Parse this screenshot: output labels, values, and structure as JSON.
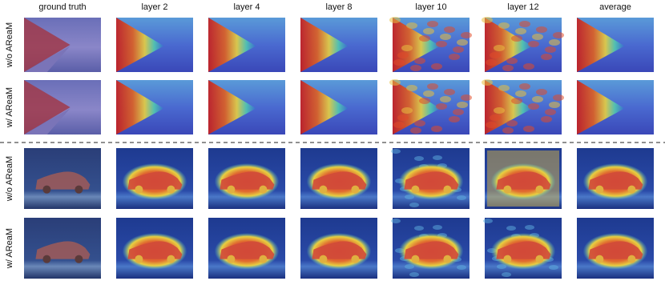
{
  "columns": [
    "ground truth",
    "layer 2",
    "layer 4",
    "layer 8",
    "layer 10",
    "layer 12",
    "average"
  ],
  "rows": [
    {
      "label": "w/o AReaM"
    },
    {
      "label": "w/ AReaM"
    },
    {
      "label": "w/o AReaM"
    },
    {
      "label": "w/ AReaM"
    }
  ]
}
